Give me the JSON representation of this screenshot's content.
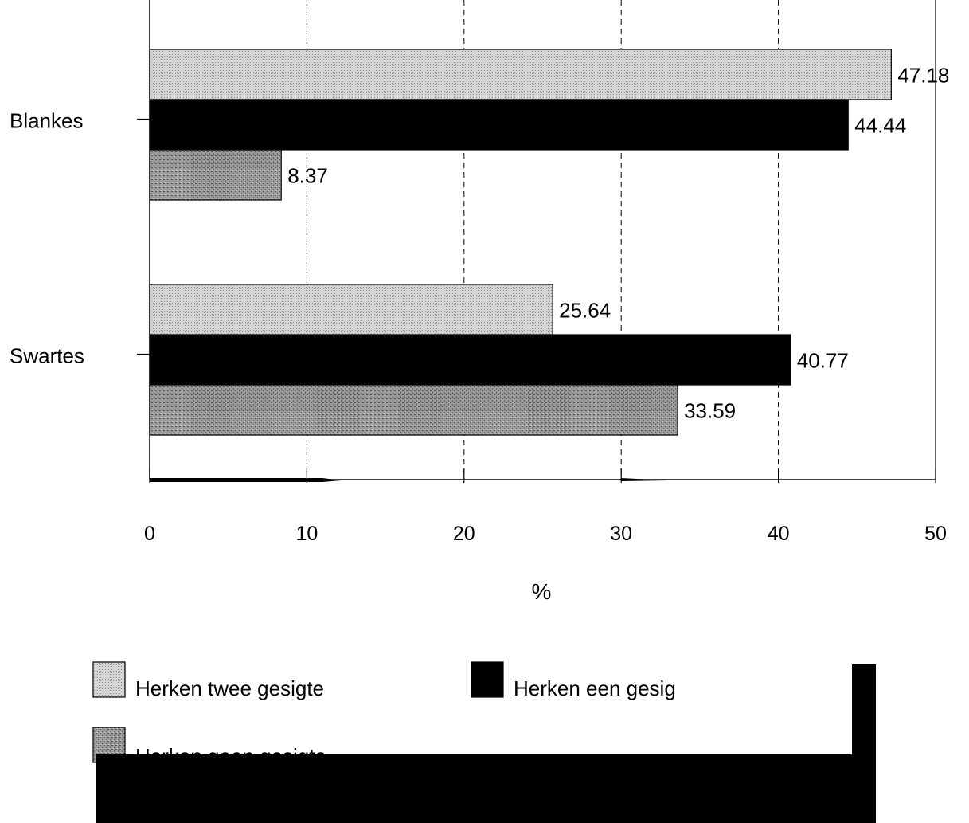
{
  "chart_data": {
    "type": "bar",
    "orientation": "horizontal",
    "categories": [
      "Blankes",
      "Swartes"
    ],
    "series": [
      {
        "name": "Herken twee gesigte",
        "values": [
          47.18,
          25.64
        ],
        "value_labels": [
          "47.18",
          "25.64"
        ],
        "fill": "pattern-light"
      },
      {
        "name": "Herken een gesig",
        "values": [
          44.44,
          40.77
        ],
        "value_labels": [
          "44.44",
          "40.77"
        ],
        "fill": "solid-black"
      },
      {
        "name": "Herken geen gesigte",
        "values": [
          8.37,
          33.59
        ],
        "value_labels": [
          "8.37",
          "33.59"
        ],
        "fill": "pattern-dark"
      }
    ],
    "xlabel": "%",
    "ylabel": "",
    "xlim": [
      0,
      50
    ],
    "x_ticks": [
      0,
      10,
      20,
      30,
      40,
      50
    ],
    "x_tick_labels": [
      "0",
      "10",
      "20",
      "30",
      "40",
      "50"
    ],
    "grid": "vertical dashed",
    "legend_position": "bottom"
  },
  "colors": {
    "light_fill": "#c8c8c8",
    "dark_fill": "#8e8e8e",
    "black": "#000000",
    "background": "#ffffff"
  }
}
